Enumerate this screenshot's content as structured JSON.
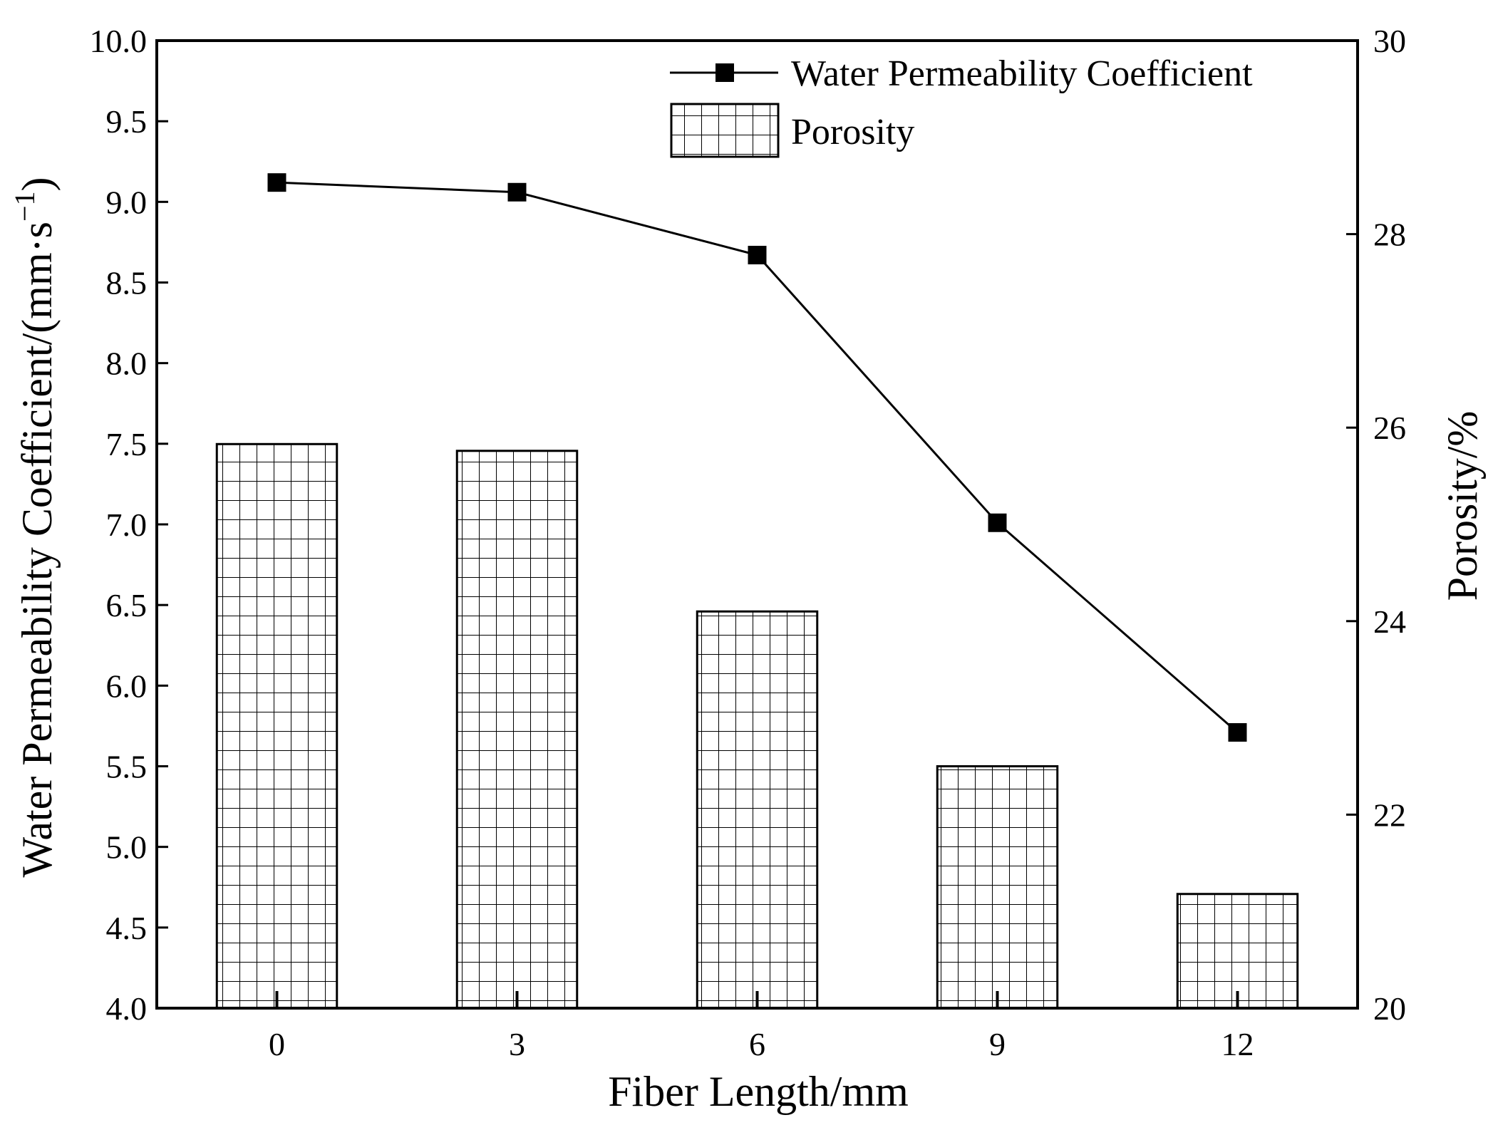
{
  "chart_data": {
    "type": "bar+line",
    "title": "",
    "xlabel": "Fiber Length/mm",
    "ylabel_left": "Water Permeability Coefficient/(mm·s",
    "ylabel_left_sup": "−1",
    "ylabel_left_close": ")",
    "ylabel_right": "Porosity/%",
    "categories": [
      "0",
      "3",
      "6",
      "9",
      "12"
    ],
    "ylim_left": [
      4.0,
      10.0
    ],
    "ylim_right": [
      20,
      30
    ],
    "yticks_left": [
      "4.0",
      "4.5",
      "5.0",
      "5.5",
      "6.0",
      "6.5",
      "7.0",
      "7.5",
      "8.0",
      "8.5",
      "9.0",
      "9.5",
      "10.0"
    ],
    "yticks_right": [
      "20",
      "22",
      "24",
      "26",
      "28",
      "30"
    ],
    "grid": false,
    "legend_position": "top-right",
    "series": [
      {
        "name": "Water Permeability Coefficient",
        "type": "line",
        "axis": "left",
        "marker": "square",
        "color": "#000000",
        "values": [
          9.12,
          9.06,
          8.67,
          7.01,
          5.71
        ]
      },
      {
        "name": "Porosity",
        "type": "bar",
        "axis": "right",
        "pattern": "grid-hatch",
        "color": "#000000",
        "values": [
          25.83,
          25.76,
          24.1,
          22.5,
          21.18
        ]
      }
    ]
  }
}
